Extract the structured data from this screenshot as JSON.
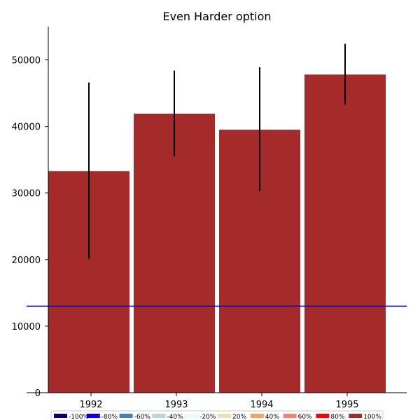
{
  "chart_data": {
    "type": "bar",
    "title": "Even Harder option",
    "xlabel": "",
    "ylabel": "",
    "categories": [
      "1992",
      "1993",
      "1994",
      "1995"
    ],
    "values": [
      33300,
      41900,
      39500,
      47800
    ],
    "error_low": [
      20100,
      35500,
      30300,
      43300
    ],
    "error_high": [
      46600,
      48400,
      48900,
      52400
    ],
    "bar_color": "#a52a2a",
    "error_color": "#000000",
    "ylim": [
      0,
      55000
    ],
    "yticks": [
      0,
      10000,
      20000,
      30000,
      40000,
      50000
    ],
    "reference_line": {
      "value": 13000,
      "color": "#0000cc"
    },
    "grid": false,
    "legend": {
      "placement": "bottom",
      "entries": [
        {
          "label": "-100%",
          "color": "#000080"
        },
        {
          "label": "-80%",
          "color": "#0000ff"
        },
        {
          "label": "-60%",
          "color": "#4682b4"
        },
        {
          "label": "-40%",
          "color": "#add8e6"
        },
        {
          "label": "-20%",
          "color": "#e0ffff"
        },
        {
          "label": "20%",
          "color": "#f5deb3"
        },
        {
          "label": "40%",
          "color": "#f4a460"
        },
        {
          "label": "60%",
          "color": "#fa8072"
        },
        {
          "label": "80%",
          "color": "#ff0000"
        },
        {
          "label": "100%",
          "color": "#a52a2a"
        }
      ]
    }
  }
}
